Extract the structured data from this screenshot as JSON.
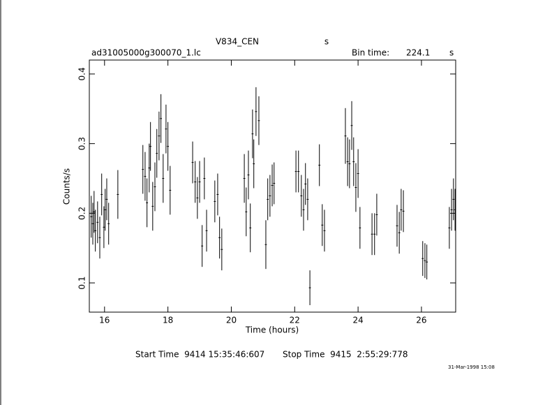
{
  "chart_data": {
    "type": "errorbar",
    "title": "V834_CEN",
    "title_unit": "s",
    "subtitle": "ad31005000g300070_1.lc",
    "bin_time_label": "Bin time:",
    "bin_time": 224.1,
    "bin_time_unit": "s",
    "xlabel": "Time (hours)",
    "ylabel": "Counts/s",
    "xlim": [
      15.52,
      27.08
    ],
    "ylim": [
      0.058,
      0.42
    ],
    "xticks": [
      16,
      18,
      20,
      22,
      24,
      26
    ],
    "yticks": [
      0.1,
      0.2,
      0.3,
      0.4
    ],
    "color": "#000000",
    "x": [
      15.58,
      15.63,
      15.67,
      15.71,
      15.78,
      15.85,
      15.91,
      15.98,
      16.02,
      16.07,
      16.13,
      16.42,
      17.21,
      17.28,
      17.34,
      17.41,
      17.45,
      17.52,
      17.59,
      17.65,
      17.72,
      17.78,
      17.85,
      17.94,
      18.0,
      18.07,
      18.78,
      18.86,
      18.93,
      19.0,
      19.08,
      19.15,
      19.22,
      19.48,
      19.57,
      19.63,
      19.7,
      20.41,
      20.47,
      20.54,
      20.6,
      20.67,
      20.71,
      20.78,
      20.87,
      21.09,
      21.15,
      21.22,
      21.29,
      21.35,
      22.04,
      22.12,
      22.21,
      22.28,
      22.34,
      22.41,
      22.48,
      22.78,
      22.87,
      22.94,
      23.6,
      23.67,
      23.73,
      23.8,
      23.86,
      23.93,
      24.0,
      24.06,
      24.44,
      24.52,
      24.59,
      25.23,
      25.3,
      25.36,
      25.43,
      26.04,
      26.11,
      26.17,
      26.88,
      26.95,
      27.01,
      27.06
    ],
    "values": [
      0.195,
      0.185,
      0.202,
      0.175,
      0.187,
      0.165,
      0.227,
      0.18,
      0.205,
      0.22,
      0.185,
      0.227,
      0.263,
      0.253,
      0.215,
      0.265,
      0.296,
      0.21,
      0.238,
      0.286,
      0.311,
      0.336,
      0.25,
      0.321,
      0.296,
      0.233,
      0.273,
      0.245,
      0.222,
      0.245,
      0.153,
      0.25,
      0.175,
      0.217,
      0.227,
      0.165,
      0.148,
      0.25,
      0.202,
      0.255,
      0.179,
      0.314,
      0.271,
      0.346,
      0.333,
      0.155,
      0.22,
      0.225,
      0.24,
      0.243,
      0.26,
      0.26,
      0.225,
      0.205,
      0.242,
      0.22,
      0.093,
      0.269,
      0.183,
      0.175,
      0.311,
      0.274,
      0.271,
      0.326,
      0.274,
      0.237,
      0.257,
      0.179,
      0.17,
      0.17,
      0.198,
      0.182,
      0.172,
      0.205,
      0.203,
      0.135,
      0.132,
      0.13,
      0.179,
      0.205,
      0.22,
      0.205
    ],
    "errors": [
      0.03,
      0.03,
      0.03,
      0.03,
      0.03,
      0.03,
      0.03,
      0.03,
      0.03,
      0.03,
      0.03,
      0.035,
      0.035,
      0.035,
      0.035,
      0.035,
      0.035,
      0.035,
      0.035,
      0.035,
      0.035,
      0.035,
      0.035,
      0.035,
      0.035,
      0.035,
      0.03,
      0.03,
      0.03,
      0.03,
      0.03,
      0.03,
      0.03,
      0.03,
      0.03,
      0.03,
      0.03,
      0.035,
      0.035,
      0.035,
      0.035,
      0.035,
      0.035,
      0.035,
      0.035,
      0.035,
      0.03,
      0.03,
      0.03,
      0.03,
      0.03,
      0.03,
      0.03,
      0.03,
      0.03,
      0.03,
      0.025,
      0.03,
      0.03,
      0.03,
      0.04,
      0.035,
      0.035,
      0.035,
      0.035,
      0.035,
      0.035,
      0.03,
      0.03,
      0.03,
      0.03,
      0.03,
      0.03,
      0.03,
      0.03,
      0.025,
      0.025,
      0.025,
      0.03,
      0.03,
      0.03,
      0.03
    ],
    "start_label": "Start Time  9414 15:35:46:607",
    "stop_label": "Stop Time  9415  2:55:29:778",
    "footer_date": "31-Mar-1998 15:08"
  }
}
